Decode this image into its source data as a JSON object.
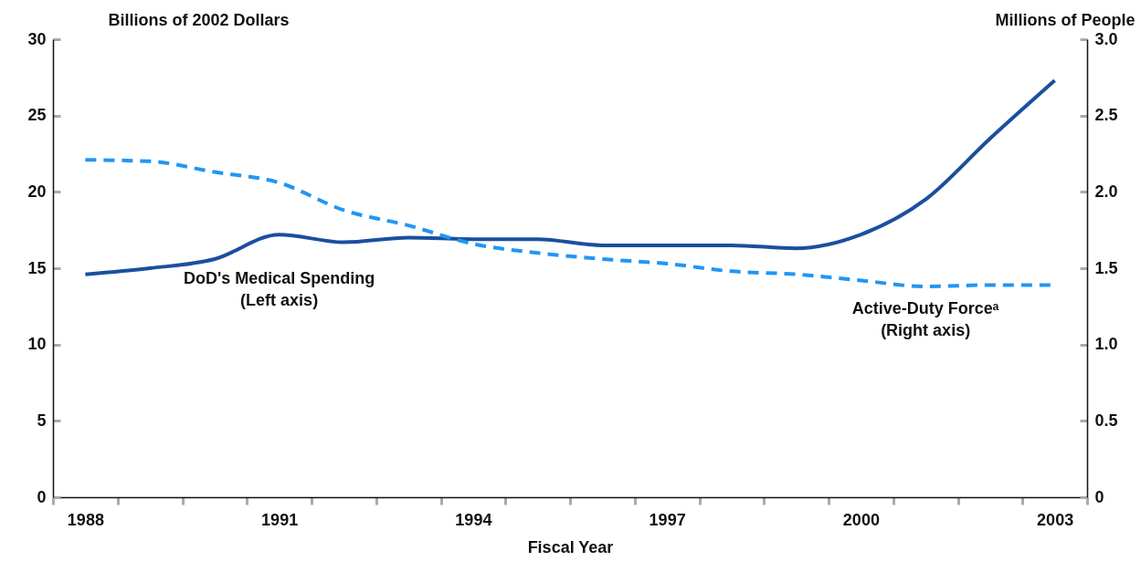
{
  "chart_data": {
    "type": "line",
    "xlabel": "Fiscal Year",
    "ylabel": "Billions of 2002 Dollars",
    "y2label": "Millions of People",
    "categories": [
      "1988",
      null,
      null,
      "1991",
      null,
      null,
      "1994",
      null,
      null,
      "1997",
      null,
      null,
      "2000",
      null,
      null,
      "2003"
    ],
    "series": [
      {
        "name": "DoD's Medical Spending\n(Left axis)",
        "color": "#1a4fa0",
        "line_style": "solid",
        "values": [
          14.6,
          15.0,
          15.6,
          17.2,
          16.7,
          17.0,
          16.9,
          16.9,
          16.5,
          16.5,
          16.5,
          16.3,
          17.2,
          19.5,
          23.5,
          27.3
        ]
      },
      {
        "name": "Active-Duty Forceᵃ\n(Right axis)",
        "color": "#2196f3",
        "line_style": "dashed",
        "axis": "y2",
        "values": [
          2.21,
          2.2,
          2.13,
          2.06,
          1.88,
          1.78,
          1.66,
          1.6,
          1.56,
          1.53,
          1.48,
          1.46,
          1.42,
          1.38,
          1.39,
          1.39
        ]
      }
    ],
    "ylim": [
      0,
      30
    ],
    "yticks": [
      0,
      5,
      10,
      15,
      20,
      25,
      30
    ],
    "y2lim": [
      0,
      3
    ],
    "y2ticks": [
      0,
      0.5,
      {
        "value": 1,
        "label": "1.0"
      },
      1.5,
      {
        "value": 2,
        "label": "2.0"
      },
      2.5,
      {
        "value": 3,
        "label": "3.0"
      }
    ]
  }
}
